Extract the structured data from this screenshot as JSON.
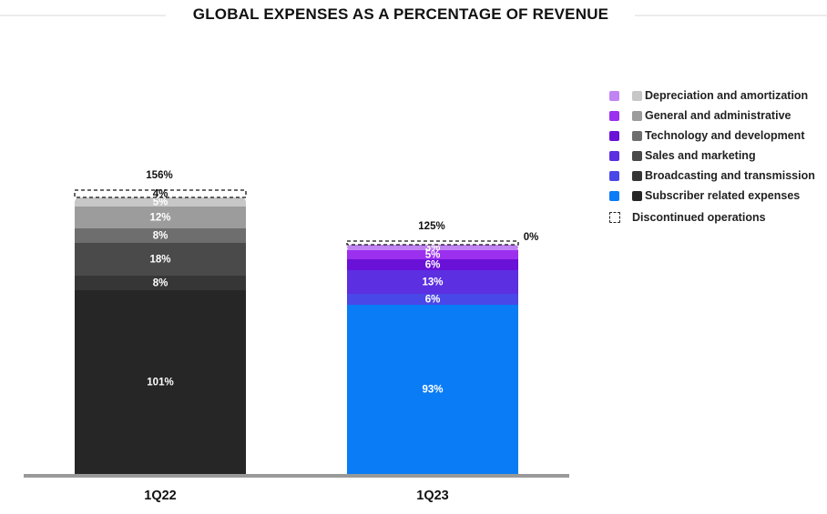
{
  "chart_data": {
    "type": "bar",
    "stacked": true,
    "title": "GLOBAL EXPENSES AS A PERCENTAGE OF REVENUE",
    "categories": [
      "1Q22",
      "1Q23"
    ],
    "totals": [
      "156%",
      "125%"
    ],
    "series": [
      {
        "name": "Subscriber related expenses",
        "values": [
          101,
          93
        ],
        "labels": [
          "101%",
          "93%"
        ],
        "colors": [
          "#262626",
          "#0a7cf5"
        ]
      },
      {
        "name": "Broadcasting and transmission",
        "values": [
          8,
          6
        ],
        "labels": [
          "8%",
          "6%"
        ],
        "colors": [
          "#363636",
          "#4a47e8"
        ]
      },
      {
        "name": "Sales and marketing",
        "values": [
          18,
          13
        ],
        "labels": [
          "18%",
          "13%"
        ],
        "colors": [
          "#4a4a4a",
          "#5c2fe0"
        ]
      },
      {
        "name": "Technology and development",
        "values": [
          8,
          6
        ],
        "labels": [
          "8%",
          "6%"
        ],
        "colors": [
          "#6e6e6e",
          "#6a11d8"
        ]
      },
      {
        "name": "General and administrative",
        "values": [
          12,
          5
        ],
        "labels": [
          "12%",
          "5%"
        ],
        "colors": [
          "#9c9c9c",
          "#9b30ef"
        ]
      },
      {
        "name": "Depreciation and amortization",
        "values": [
          5,
          3
        ],
        "labels": [
          "5%",
          "3%"
        ],
        "colors": [
          "#c7c7c7",
          "#c184f3"
        ]
      },
      {
        "name": "Discontinued operations",
        "values": [
          4,
          0
        ],
        "labels": [
          "4%",
          "0%"
        ],
        "dashed": true
      }
    ],
    "ylim": [
      0,
      160
    ],
    "xlabel": "",
    "ylabel": ""
  },
  "legend": [
    {
      "label": "Depreciation and amortization",
      "color_a": "#c184f3",
      "color_b": "#c7c7c7"
    },
    {
      "label": "General and administrative",
      "color_a": "#9b30ef",
      "color_b": "#9c9c9c"
    },
    {
      "label": "Technology and development",
      "color_a": "#6a11d8",
      "color_b": "#6e6e6e"
    },
    {
      "label": "Sales and marketing",
      "color_a": "#5c2fe0",
      "color_b": "#4a4a4a"
    },
    {
      "label": "Broadcasting and transmission",
      "color_a": "#4a47e8",
      "color_b": "#363636"
    },
    {
      "label": "Subscriber related expenses",
      "color_a": "#0a7cf5",
      "color_b": "#262626"
    }
  ],
  "legend_discontinued": "Discontinued operations"
}
